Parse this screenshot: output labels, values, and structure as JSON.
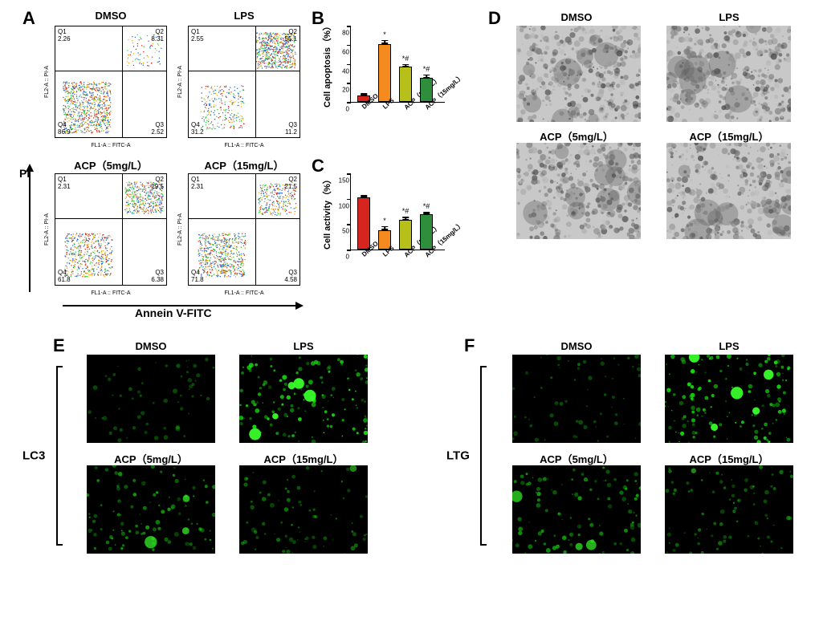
{
  "groups": [
    "DMSO",
    "LPS",
    "ACP（5mg/L）",
    "ACP（15mg/L）"
  ],
  "group_colors": [
    "#d6241f",
    "#f58a1f",
    "#b7bf1a",
    "#2e8e3c"
  ],
  "panelA": {
    "label": "A",
    "axis_y": "PI",
    "axis_x": "Annein V-FITC",
    "sub_axis_x": "FL1-A :: FITC-A",
    "sub_axis_y": "FL2-A :: PI-A",
    "plots": [
      {
        "title": "DMSO",
        "q1": "Q1",
        "q1v": "2.26",
        "q2": "Q2",
        "q2v": "8.31",
        "q3": "Q3",
        "q3v": "2.52",
        "q4": "Q4",
        "q4v": "86.9",
        "cluster": "q4"
      },
      {
        "title": "LPS",
        "q1": "Q1",
        "q1v": "2.55",
        "q2": "Q2",
        "q2v": "55.1",
        "q3": "Q3",
        "q3v": "11.2",
        "q4": "Q4",
        "q4v": "31.2",
        "cluster": "q2"
      },
      {
        "title": "ACP（5mg/L）",
        "q1": "Q1",
        "q1v": "2.31",
        "q2": "Q2",
        "q2v": "29.5",
        "q3": "Q3",
        "q3v": "6.38",
        "q4": "Q4",
        "q4v": "61.8",
        "cluster": "mix"
      },
      {
        "title": "ACP（15mg/L）",
        "q1": "Q1",
        "q1v": "2.31",
        "q2": "Q2",
        "q2v": "21.5",
        "q3": "Q3",
        "q3v": "4.58",
        "q4": "Q4",
        "q4v": "71.8",
        "cluster": "q4heavy"
      }
    ]
  },
  "panelB": {
    "label": "B",
    "ylabel": "Cell apoptosis（%）",
    "ymax": 80,
    "ytick_step": 20,
    "values": [
      7,
      61,
      37,
      25
    ],
    "errors": [
      2,
      4,
      3,
      4
    ],
    "sig": [
      "",
      "*",
      "*#",
      "*#"
    ]
  },
  "panelC": {
    "label": "C",
    "ylabel": "Cell activity（%）",
    "ymax": 150,
    "ytick_step": 50,
    "values": [
      102,
      38,
      58,
      70
    ],
    "errors": [
      5,
      8,
      6,
      5
    ],
    "sig": [
      "",
      "*",
      "*#",
      "*#"
    ]
  },
  "panelD": {
    "label": "D"
  },
  "panelE": {
    "label": "E",
    "marker": "LC3"
  },
  "panelF": {
    "label": "F",
    "marker": "LTG"
  },
  "fluo_intensity": {
    "E": [
      35,
      255,
      160,
      90
    ],
    "F": [
      40,
      255,
      150,
      90
    ]
  },
  "style": {
    "background": "#ffffff",
    "panel_label_fontsize": 22,
    "title_fontsize": 13,
    "axis_label_fontsize": 14
  }
}
